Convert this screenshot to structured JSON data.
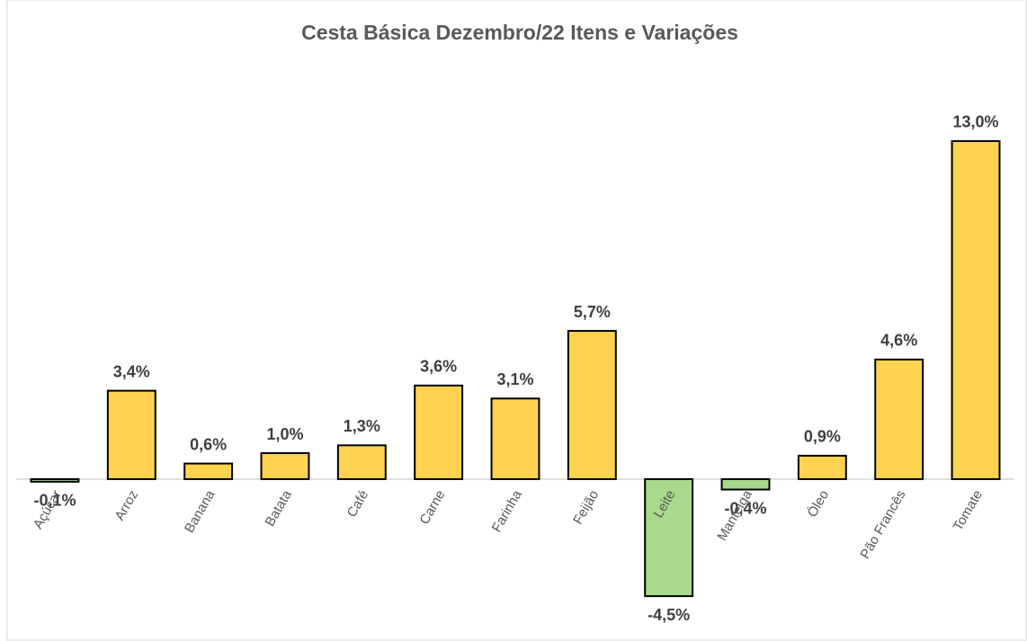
{
  "chart_data": {
    "type": "bar",
    "title": "Cesta Básica Dezembro/22 Itens e Variações",
    "categories": [
      "Açúcar",
      "Arroz",
      "Banana",
      "Batata",
      "Café",
      "Carne",
      "Farinha",
      "Feijão",
      "Leite",
      "Manteiga",
      "Óleo",
      "Pão Francês",
      "Tomate"
    ],
    "values": [
      -0.1,
      3.4,
      0.6,
      1.0,
      1.3,
      3.6,
      3.1,
      5.7,
      -4.5,
      -0.4,
      0.9,
      4.6,
      13.0
    ],
    "value_labels": [
      "-0,1%",
      "3,4%",
      "0,6%",
      "1,0%",
      "1,3%",
      "3,6%",
      "3,1%",
      "5,7%",
      "-4,5%",
      "-0,4%",
      "0,9%",
      "4,6%",
      "13,0%"
    ],
    "colors": [
      "#a9d98b",
      "#ffd34f",
      "#ffd34f",
      "#ffd34f",
      "#ffd34f",
      "#ffd34f",
      "#ffd34f",
      "#ffd34f",
      "#a9d98b",
      "#a9d98b",
      "#ffd34f",
      "#ffd34f",
      "#ffd34f"
    ],
    "ylim": [
      -6,
      14
    ]
  }
}
